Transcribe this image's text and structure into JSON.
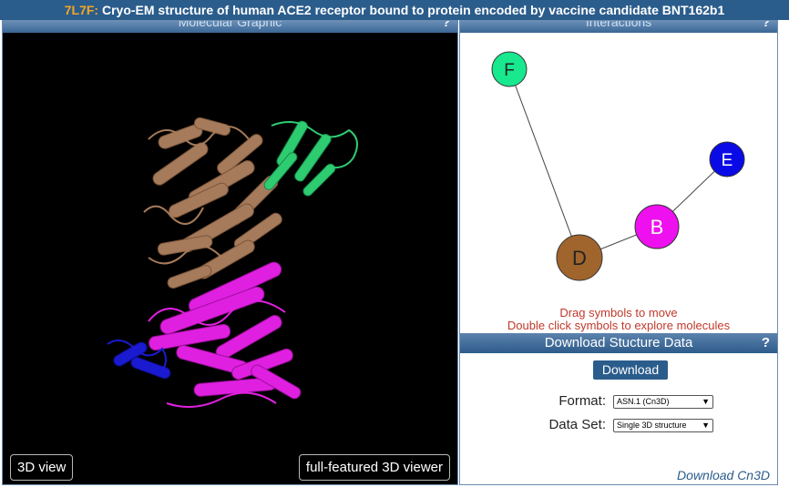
{
  "title": {
    "pdb_id": "7L7F:",
    "text": "Cryo-EM structure of human ACE2 receptor bound to protein encoded by vaccine candidate BNT162b1"
  },
  "molecular_graphic": {
    "header": "Molecular Graphic",
    "help": "?",
    "btn_3d_view": "3D view",
    "btn_full_viewer": "full-featured 3D viewer"
  },
  "interactions": {
    "header": "Interactions",
    "help": "?",
    "nodes": [
      {
        "id": "F",
        "color": "#18e88e",
        "text_color": "#222222"
      },
      {
        "id": "E",
        "color": "#0a0ae6",
        "text_color": "#ffffff"
      },
      {
        "id": "B",
        "color": "#ee10ee",
        "text_color": "#ffffff"
      },
      {
        "id": "D",
        "color": "#a0652c",
        "text_color": "#222222"
      }
    ],
    "hint_line1": "Drag symbols to move",
    "hint_line2": "Double click symbols to explore molecules"
  },
  "download": {
    "header": "Download Stucture Data",
    "help": "?",
    "button_label": "Download",
    "format_label": "Format:",
    "format_value": "ASN.1 (Cn3D)",
    "dataset_label": "Data Set:",
    "dataset_value": "Single 3D structure",
    "cn3d_link": "Download Cn3D"
  },
  "colors": {
    "header_blue": "#2b5d8c",
    "pdb_id_orange": "#f5a623",
    "chain_brown": "#a67b5b",
    "chain_green": "#2ecc71",
    "chain_magenta": "#e020e0",
    "chain_blue": "#1a1ad0",
    "hint_red": "#c0392b"
  }
}
